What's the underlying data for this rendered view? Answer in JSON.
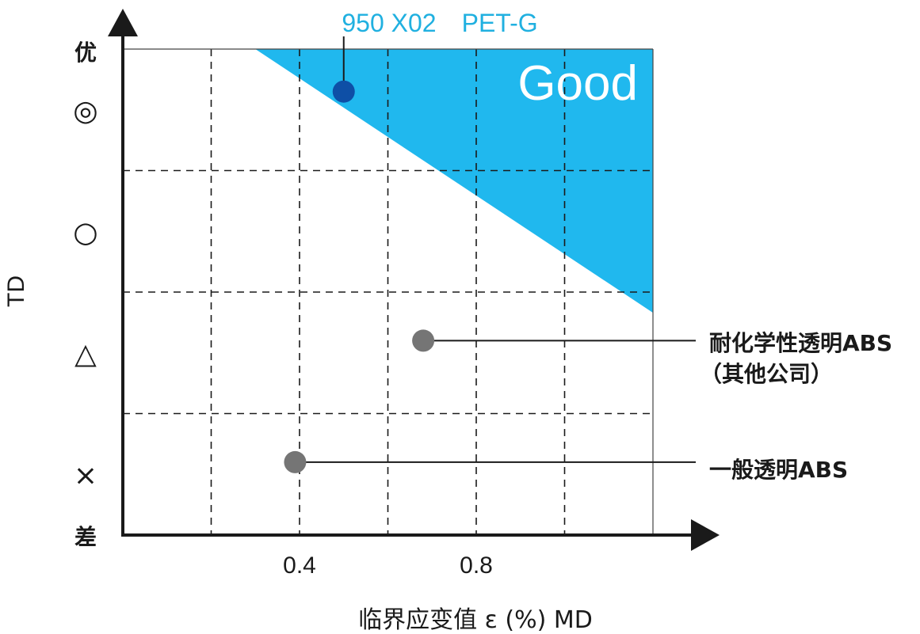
{
  "chart_data": {
    "type": "scatter",
    "title": "",
    "xlabel": "临界应变值 ε (%) MD",
    "ylabel": "TD",
    "xlim": [
      0,
      1.2
    ],
    "ylim": [
      0,
      4
    ],
    "x_ticks": [
      0.4,
      0.8
    ],
    "y_scale_labels": {
      "top": "优",
      "bottom": "差"
    },
    "y_tick_symbols": [
      "×",
      "△",
      "○",
      "◎"
    ],
    "grid": true,
    "good_region_label": "Good",
    "good_region_color": "#20b8ee",
    "points": [
      {
        "label": "950 X02　PET-G",
        "x": 0.5,
        "y": 3.65,
        "color": "#0e4fa6",
        "label_color": "#20b0e0"
      },
      {
        "label": "耐化学性透明ABS",
        "label2": "（其他公司）",
        "x": 0.68,
        "y": 1.6,
        "color": "#757575"
      },
      {
        "label": "一般透明ABS",
        "x": 0.39,
        "y": 0.6,
        "color": "#757575"
      }
    ]
  }
}
